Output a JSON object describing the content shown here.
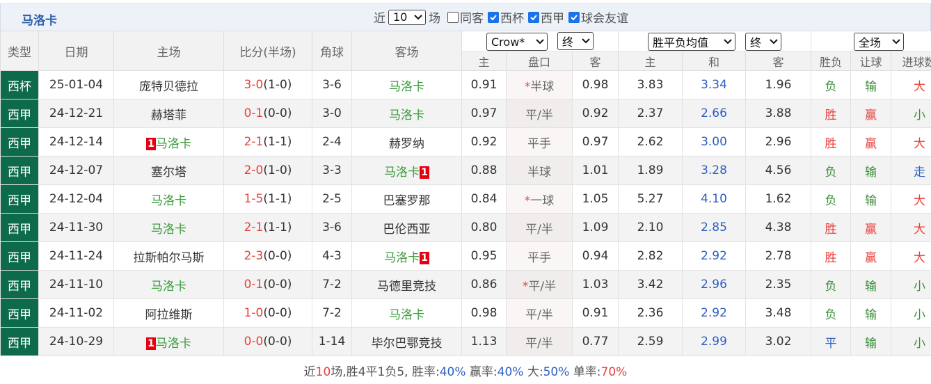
{
  "header": {
    "title": "马洛卡",
    "filter": {
      "prefix": "近",
      "count": "10",
      "suffix": "场",
      "options": [
        {
          "label": "同客",
          "checked": false
        },
        {
          "label": "西杯",
          "checked": true
        },
        {
          "label": "西甲",
          "checked": true
        },
        {
          "label": "球会友谊",
          "checked": true
        }
      ]
    }
  },
  "table": {
    "columns": [
      "类型",
      "日期",
      "主场",
      "比分(半场)",
      "角球",
      "客场"
    ],
    "selects": [
      "Crow*",
      "终",
      "胜平负均值",
      "终",
      "全场"
    ],
    "subcolumns": [
      "主",
      "盘口",
      "客",
      "主",
      "和",
      "客",
      "胜负",
      "让球",
      "进球数"
    ],
    "result_colors": {
      "胜": "#e8413c",
      "负": "#3a8e3a",
      "平": "#2d5fc4",
      "赢": "#e8413c",
      "输": "#3a8e3a",
      "大": "#e8413c",
      "小": "#3a8e3a",
      "走": "#2d5fc4"
    },
    "rows": [
      {
        "type": "西杯",
        "date": "25-01-04",
        "home": "庞特贝德拉",
        "score": "3-0",
        "half": "(1-0)",
        "corner": "3-6",
        "away": "马洛卡",
        "odds_home": "0.91",
        "mark": "*",
        "handicap": "半球",
        "odds_away": "0.98",
        "avg_home": "3.83",
        "avg_draw": "3.34",
        "avg_away": "1.96",
        "result": "负",
        "hcp_result": "输",
        "goals_result": "大"
      },
      {
        "type": "西甲",
        "date": "24-12-21",
        "home": "赫塔菲",
        "score": "0-1",
        "half": "(0-0)",
        "corner": "3-0",
        "away": "马洛卡",
        "odds_home": "0.97",
        "handicap": "平/半",
        "odds_away": "0.92",
        "avg_home": "2.37",
        "avg_draw": "2.66",
        "avg_away": "3.88",
        "result": "胜",
        "hcp_result": "赢",
        "goals_result": "小"
      },
      {
        "type": "西甲",
        "date": "24-12-14",
        "home_card": "1",
        "home": "马洛卡",
        "score": "2-1",
        "half": "(1-1)",
        "corner": "2-4",
        "away": "赫罗纳",
        "odds_home": "0.92",
        "handicap": "平手",
        "odds_away": "0.97",
        "avg_home": "2.62",
        "avg_draw": "3.00",
        "avg_away": "2.96",
        "result": "胜",
        "hcp_result": "赢",
        "goals_result": "大"
      },
      {
        "type": "西甲",
        "date": "24-12-07",
        "home": "塞尔塔",
        "score": "2-0",
        "half": "(1-0)",
        "corner": "3-3",
        "away": "马洛卡",
        "away_card": "1",
        "odds_home": "0.88",
        "handicap": "半球",
        "odds_away": "1.01",
        "avg_home": "1.89",
        "avg_draw": "3.28",
        "avg_away": "4.56",
        "result": "负",
        "hcp_result": "输",
        "goals_result": "走"
      },
      {
        "type": "西甲",
        "date": "24-12-04",
        "home": "马洛卡",
        "score": "1-5",
        "half": "(1-1)",
        "corner": "2-5",
        "away": "巴塞罗那",
        "odds_home": "0.84",
        "mark": "*",
        "handicap": "一球",
        "odds_away": "1.05",
        "avg_home": "5.27",
        "avg_draw": "4.10",
        "avg_away": "1.62",
        "result": "负",
        "hcp_result": "输",
        "goals_result": "大"
      },
      {
        "type": "西甲",
        "date": "24-11-30",
        "home": "马洛卡",
        "score": "2-1",
        "half": "(1-1)",
        "corner": "3-6",
        "away": "巴伦西亚",
        "odds_home": "0.80",
        "handicap": "平/半",
        "odds_away": "1.09",
        "avg_home": "2.10",
        "avg_draw": "2.85",
        "avg_away": "4.38",
        "result": "胜",
        "hcp_result": "赢",
        "goals_result": "大"
      },
      {
        "type": "西甲",
        "date": "24-11-24",
        "home": "拉斯帕尔马斯",
        "score": "2-3",
        "half": "(0-0)",
        "corner": "4-3",
        "away": "马洛卡",
        "away_card": "1",
        "odds_home": "0.95",
        "handicap": "平手",
        "odds_away": "0.94",
        "avg_home": "2.82",
        "avg_draw": "2.92",
        "avg_away": "2.78",
        "result": "胜",
        "hcp_result": "赢",
        "goals_result": "大"
      },
      {
        "type": "西甲",
        "date": "24-11-10",
        "home": "马洛卡",
        "score": "0-1",
        "half": "(0-0)",
        "corner": "7-2",
        "away": "马德里竞技",
        "odds_home": "0.86",
        "mark": "*",
        "handicap": "平/半",
        "odds_away": "1.03",
        "avg_home": "3.42",
        "avg_draw": "2.96",
        "avg_away": "2.35",
        "result": "负",
        "hcp_result": "输",
        "goals_result": "小"
      },
      {
        "type": "西甲",
        "date": "24-11-02",
        "home": "阿拉维斯",
        "score": "1-0",
        "half": "(0-0)",
        "corner": "7-2",
        "away": "马洛卡",
        "odds_home": "0.98",
        "handicap": "平/半",
        "odds_away": "0.91",
        "avg_home": "2.36",
        "avg_draw": "2.92",
        "avg_away": "3.48",
        "result": "负",
        "hcp_result": "输",
        "goals_result": "小"
      },
      {
        "type": "西甲",
        "date": "24-10-29",
        "home_card": "1",
        "home": "马洛卡",
        "score": "0-0",
        "half": "(0-0)",
        "corner": "1-14",
        "away": "毕尔巴鄂竞技",
        "odds_home": "1.13",
        "handicap": "平/半",
        "odds_away": "0.77",
        "avg_home": "2.59",
        "avg_draw": "2.99",
        "avg_away": "3.02",
        "result": "平",
        "hcp_result": "输",
        "goals_result": "小"
      }
    ]
  },
  "footer": [
    "近",
    "10",
    "场,胜4平1负5, 胜率:",
    "40%",
    " 赢率:",
    "40%",
    " 大:",
    "50%",
    " 单率:",
    "70%"
  ]
}
